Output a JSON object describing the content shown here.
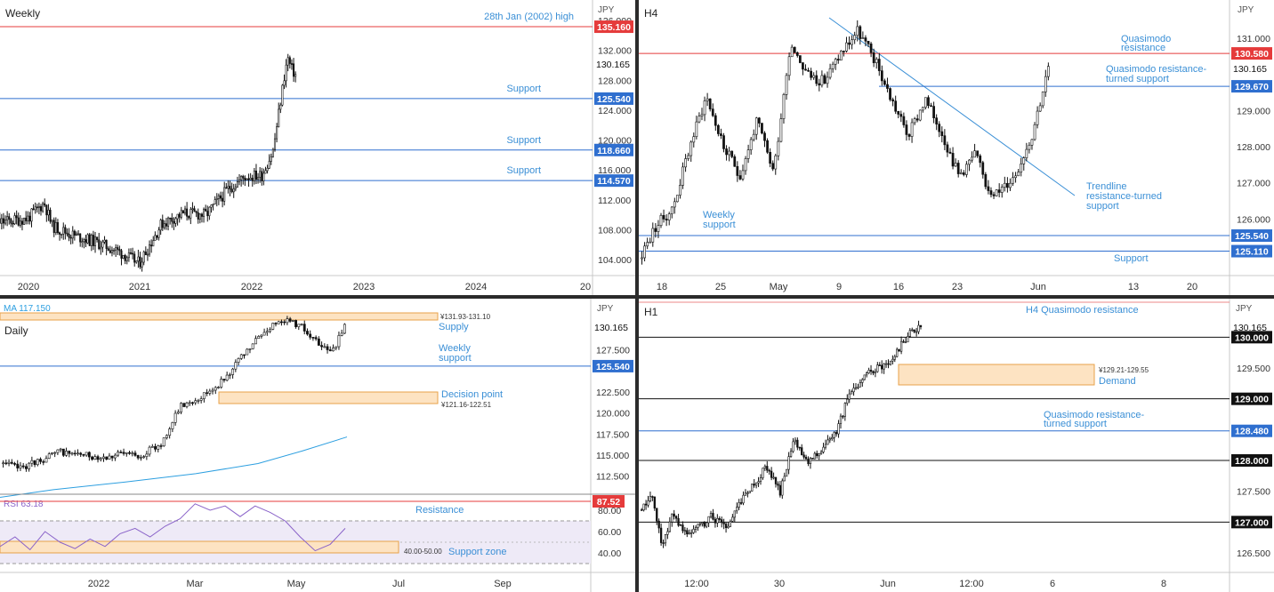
{
  "colors": {
    "red": "#e53b3b",
    "blue": "#2f6fcf",
    "annotation": "#3a8fd6",
    "black": "#111111",
    "grid_text": "#444444",
    "zone_fill": "#fde3c2",
    "zone_stroke": "#e8a24a",
    "rsi": "#8a63c9",
    "ma": "#2d9fe0"
  },
  "chart_data": [
    {
      "panel": "weekly",
      "type": "candlestick",
      "title": "Weekly",
      "currency_label": "JPY",
      "x_ticks": [
        "2020",
        "2021",
        "2022",
        "2023",
        "2024",
        "20"
      ],
      "y_ticks": [
        "136.000",
        "132.000",
        "128.000",
        "124.000",
        "120.000",
        "116.000",
        "112.000",
        "108.000",
        "104.000"
      ],
      "ylim": [
        101,
        137
      ],
      "series": [
        {
          "x": [
            2019.55,
            2019.75,
            2020.0,
            2020.15,
            2020.22,
            2020.4,
            2020.6,
            2020.8,
            2021.0,
            2021.2,
            2021.4,
            2021.6,
            2021.8,
            2021.95,
            2022.1,
            2022.2,
            2022.3,
            2022.33,
            2022.36,
            2022.4
          ],
          "y": [
            108.2,
            109.0,
            109.5,
            111.6,
            108.5,
            107.3,
            106.4,
            105.2,
            103.5,
            108.8,
            110.2,
            110.0,
            113.5,
            115.1,
            115.3,
            118.6,
            128.6,
            131.0,
            129.6,
            128.7
          ]
        }
      ],
      "last_price": "130.165",
      "levels": [
        {
          "value": 135.16,
          "label": "135.160",
          "kind": "resistance",
          "annotation": "28th Jan (2002) high"
        },
        {
          "value": 125.54,
          "label": "125.540",
          "kind": "support",
          "annotation": "Support"
        },
        {
          "value": 118.66,
          "label": "118.660",
          "kind": "support",
          "annotation": "Support"
        },
        {
          "value": 114.57,
          "label": "114.570",
          "kind": "support",
          "annotation": "Support"
        }
      ]
    },
    {
      "panel": "h4",
      "type": "candlestick",
      "title": "H4",
      "currency_label": "JPY",
      "x_ticks": [
        "18",
        "25",
        "May",
        "9",
        "16",
        "23",
        "Jun",
        "13",
        "20"
      ],
      "y_ticks": [
        "131.000",
        "129.000",
        "128.000",
        "127.000",
        "126.000"
      ],
      "ylim": [
        124.5,
        131.6
      ],
      "series": [
        {
          "x": [
            0,
            3,
            6,
            9,
            12,
            15,
            18,
            21,
            24,
            27,
            30,
            33,
            36,
            39,
            42,
            45,
            48,
            51,
            54,
            57,
            60,
            62,
            64,
            67,
            70,
            73
          ],
          "y": [
            124.9,
            125.8,
            126.3,
            128.0,
            129.4,
            128.0,
            127.2,
            128.7,
            127.3,
            130.9,
            130.0,
            129.8,
            130.6,
            131.2,
            130.4,
            129.3,
            128.3,
            129.3,
            128.4,
            127.2,
            127.8,
            126.9,
            126.7,
            127.2,
            128.3,
            130.165
          ]
        }
      ],
      "last_price": "130.165",
      "levels": [
        {
          "value": 130.58,
          "label": "130.580",
          "kind": "resistance",
          "annotation": "Quasimodo resistance"
        },
        {
          "value": 129.67,
          "label": "129.670",
          "kind": "support",
          "annotation": "Quasimodo resistance-turned support"
        },
        {
          "value": 125.54,
          "label": "125.540",
          "kind": "support",
          "annotation": "Weekly support"
        },
        {
          "value": 125.11,
          "label": "125.110",
          "kind": "support",
          "annotation": "Support"
        }
      ],
      "trendline_label": "Trendline resistance-turned support"
    },
    {
      "panel": "daily",
      "type": "candlestick",
      "title": "Daily",
      "currency_label": "JPY",
      "ma_label": "MA",
      "ma_value": "117.150",
      "x_ticks": [
        "2022",
        "Mar",
        "May",
        "Jul",
        "Sep"
      ],
      "y_ticks": [
        "127.500",
        "122.500",
        "120.000",
        "117.500",
        "115.000",
        "112.500"
      ],
      "ylim": [
        110,
        132.5
      ],
      "series": [
        {
          "x": [
            0,
            5,
            10,
            15,
            20,
            25,
            30,
            35,
            40,
            45,
            50,
            55,
            60,
            65,
            70,
            75,
            80,
            82,
            84,
            86
          ],
          "y": [
            114.0,
            113.5,
            114.4,
            115.4,
            115.0,
            114.8,
            115.1,
            115.0,
            116.2,
            120.8,
            121.9,
            123.6,
            126.4,
            129.2,
            131.2,
            130.4,
            127.8,
            127.3,
            128.3,
            130.165
          ]
        }
      ],
      "ma_series": [
        110.0,
        110.9,
        111.8,
        112.8,
        114.0,
        115.5,
        117.15
      ],
      "last_price": "130.165",
      "levels": [
        {
          "value": 125.54,
          "label": "125.540",
          "kind": "support",
          "annotation": "Weekly support"
        }
      ],
      "zones": [
        {
          "from": 131.1,
          "to": 131.93,
          "label": "¥131.93-131.10",
          "annotation": "Supply"
        },
        {
          "from": 121.16,
          "to": 122.51,
          "label": "¥121.16-122.51",
          "annotation": "Decision point"
        }
      ],
      "rsi": {
        "label": "RSI",
        "value": "63.18",
        "y_ticks": [
          "80.00",
          "60.00",
          "40.00"
        ],
        "resistance": {
          "value": 87.52,
          "label": "87.52",
          "annotation": "Resistance"
        },
        "support_zone": {
          "from": 40,
          "to": 50,
          "label": "40.00-50.00",
          "annotation": "Support zone"
        },
        "series": [
          46,
          55,
          43,
          60,
          50,
          44,
          53,
          46,
          58,
          63,
          55,
          65,
          72,
          86,
          80,
          84,
          74,
          84,
          78,
          70,
          55,
          42,
          48,
          63
        ]
      }
    },
    {
      "panel": "h1",
      "type": "candlestick",
      "title": "H1",
      "currency_label": "JPY",
      "x_ticks": [
        "12:00",
        "30",
        "Jun",
        "12:00",
        "6",
        "8"
      ],
      "y_ticks": [
        "129.500",
        "128.500",
        "127.500",
        "126.500"
      ],
      "ylim": [
        126.25,
        130.65
      ],
      "series": [
        {
          "x": [
            0,
            3,
            5,
            7,
            10,
            13,
            16,
            19,
            22,
            25,
            28,
            31,
            34,
            37,
            40,
            43,
            46,
            49,
            52,
            55,
            58,
            60,
            62
          ],
          "y": [
            127.2,
            127.4,
            126.6,
            127.1,
            126.8,
            126.9,
            127.1,
            126.9,
            127.3,
            127.6,
            127.9,
            127.5,
            128.3,
            128.0,
            128.2,
            128.4,
            129.0,
            129.3,
            129.5,
            129.55,
            129.9,
            130.1,
            130.165
          ]
        }
      ],
      "last_price": "130.165",
      "levels": [
        {
          "value": 130.0,
          "label": "130.000",
          "kind": "round"
        },
        {
          "value": 129.0,
          "label": "129.000",
          "kind": "round"
        },
        {
          "value": 128.48,
          "label": "128.480",
          "kind": "support",
          "annotation": "Quasimodo resistance-turned support"
        },
        {
          "value": 128.0,
          "label": "128.000",
          "kind": "round"
        },
        {
          "value": 127.0,
          "label": "127.000",
          "kind": "round"
        }
      ],
      "zones": [
        {
          "from": 129.21,
          "to": 129.55,
          "label": "¥129.21-129.55",
          "annotation": "Demand"
        }
      ],
      "top_annotation": "H4 Quasimodo resistance"
    }
  ]
}
